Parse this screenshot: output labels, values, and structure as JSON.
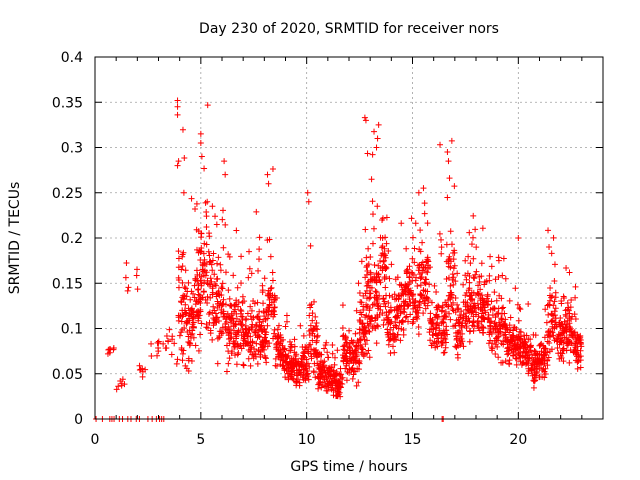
{
  "chart_data": {
    "type": "scatter",
    "title": "Day 230 of 2020, SRMTID for receiver nors",
    "xlabel": "GPS time / hours",
    "ylabel": "SRMTID / TECUs",
    "xlim": [
      0,
      24
    ],
    "ylim": [
      0,
      0.4
    ],
    "xticks": [
      0,
      5,
      10,
      15,
      20
    ],
    "yticks": [
      0,
      0.05,
      0.1,
      0.15,
      0.2,
      0.25,
      0.3,
      0.35,
      0.4
    ],
    "xtick_labels": [
      "0",
      "5",
      "10",
      "15",
      "20"
    ],
    "ytick_labels": [
      "0",
      "0.05",
      "0.1",
      "0.15",
      "0.2",
      "0.25",
      "0.3",
      "0.35",
      "0.4"
    ],
    "grid": true,
    "marker": "+",
    "color": "#ff0000",
    "zero_points_x": [
      0.05,
      0.35,
      0.7,
      0.8,
      0.9,
      1.15,
      1.3,
      1.55,
      1.7,
      1.95,
      2.1,
      2.5,
      2.7,
      2.9,
      3.05,
      3.15,
      3.25,
      16.4,
      16.45
    ],
    "envelope": [
      [
        0.6,
        0.075,
        0.008
      ],
      [
        1.0,
        0.04,
        0.008
      ],
      [
        1.4,
        0.15,
        0.03
      ],
      [
        2.1,
        0.055,
        0.01
      ],
      [
        2.6,
        0.075,
        0.015
      ],
      [
        3.0,
        0.085,
        0.02
      ],
      [
        3.5,
        0.08,
        0.03
      ],
      [
        3.9,
        0.13,
        0.08
      ],
      [
        4.3,
        0.1,
        0.06
      ],
      [
        4.7,
        0.13,
        0.06
      ],
      [
        5.0,
        0.16,
        0.08
      ],
      [
        5.4,
        0.13,
        0.06
      ],
      [
        5.8,
        0.12,
        0.06
      ],
      [
        6.2,
        0.1,
        0.05
      ],
      [
        6.6,
        0.1,
        0.05
      ],
      [
        7.0,
        0.09,
        0.04
      ],
      [
        7.4,
        0.1,
        0.05
      ],
      [
        7.8,
        0.09,
        0.04
      ],
      [
        8.1,
        0.12,
        0.06
      ],
      [
        8.5,
        0.075,
        0.03
      ],
      [
        8.9,
        0.06,
        0.03
      ],
      [
        9.3,
        0.055,
        0.025
      ],
      [
        9.7,
        0.06,
        0.025
      ],
      [
        10.1,
        0.08,
        0.05
      ],
      [
        10.5,
        0.055,
        0.03
      ],
      [
        10.9,
        0.045,
        0.02
      ],
      [
        11.3,
        0.04,
        0.02
      ],
      [
        11.7,
        0.07,
        0.035
      ],
      [
        12.1,
        0.07,
        0.04
      ],
      [
        12.5,
        0.1,
        0.05
      ],
      [
        12.8,
        0.13,
        0.07
      ],
      [
        13.1,
        0.14,
        0.08
      ],
      [
        13.4,
        0.16,
        0.07
      ],
      [
        13.8,
        0.1,
        0.04
      ],
      [
        14.2,
        0.12,
        0.05
      ],
      [
        14.6,
        0.14,
        0.05
      ],
      [
        15.0,
        0.13,
        0.05
      ],
      [
        15.4,
        0.15,
        0.05
      ],
      [
        15.8,
        0.1,
        0.04
      ],
      [
        16.2,
        0.1,
        0.05
      ],
      [
        16.6,
        0.15,
        0.07
      ],
      [
        17.0,
        0.1,
        0.04
      ],
      [
        17.4,
        0.12,
        0.04
      ],
      [
        17.8,
        0.13,
        0.05
      ],
      [
        18.2,
        0.12,
        0.04
      ],
      [
        18.6,
        0.1,
        0.035
      ],
      [
        19.0,
        0.1,
        0.04
      ],
      [
        19.4,
        0.085,
        0.03
      ],
      [
        19.8,
        0.08,
        0.03
      ],
      [
        20.2,
        0.075,
        0.03
      ],
      [
        20.6,
        0.06,
        0.025
      ],
      [
        21.0,
        0.065,
        0.03
      ],
      [
        21.4,
        0.11,
        0.05
      ],
      [
        21.8,
        0.09,
        0.04
      ],
      [
        22.2,
        0.1,
        0.04
      ],
      [
        22.6,
        0.08,
        0.03
      ]
    ],
    "peaks": [
      [
        3.9,
        0.352
      ],
      [
        3.9,
        0.345
      ],
      [
        3.9,
        0.336
      ],
      [
        3.95,
        0.285
      ],
      [
        3.9,
        0.28
      ],
      [
        5.0,
        0.315
      ],
      [
        5.0,
        0.305
      ],
      [
        5.05,
        0.29
      ],
      [
        6.1,
        0.285
      ],
      [
        6.15,
        0.27
      ],
      [
        8.15,
        0.27
      ],
      [
        8.2,
        0.26
      ],
      [
        10.05,
        0.25
      ],
      [
        10.1,
        0.24
      ],
      [
        12.75,
        0.333
      ],
      [
        12.8,
        0.33
      ],
      [
        13.4,
        0.325
      ],
      [
        13.35,
        0.31
      ],
      [
        13.3,
        0.3
      ],
      [
        16.3,
        0.303
      ],
      [
        16.65,
        0.295
      ],
      [
        16.7,
        0.285
      ],
      [
        15.3,
        0.25
      ],
      [
        21.45,
        0.19
      ],
      [
        20.0,
        0.2
      ],
      [
        4.2,
        0.25
      ],
      [
        5.3,
        0.24
      ]
    ]
  }
}
